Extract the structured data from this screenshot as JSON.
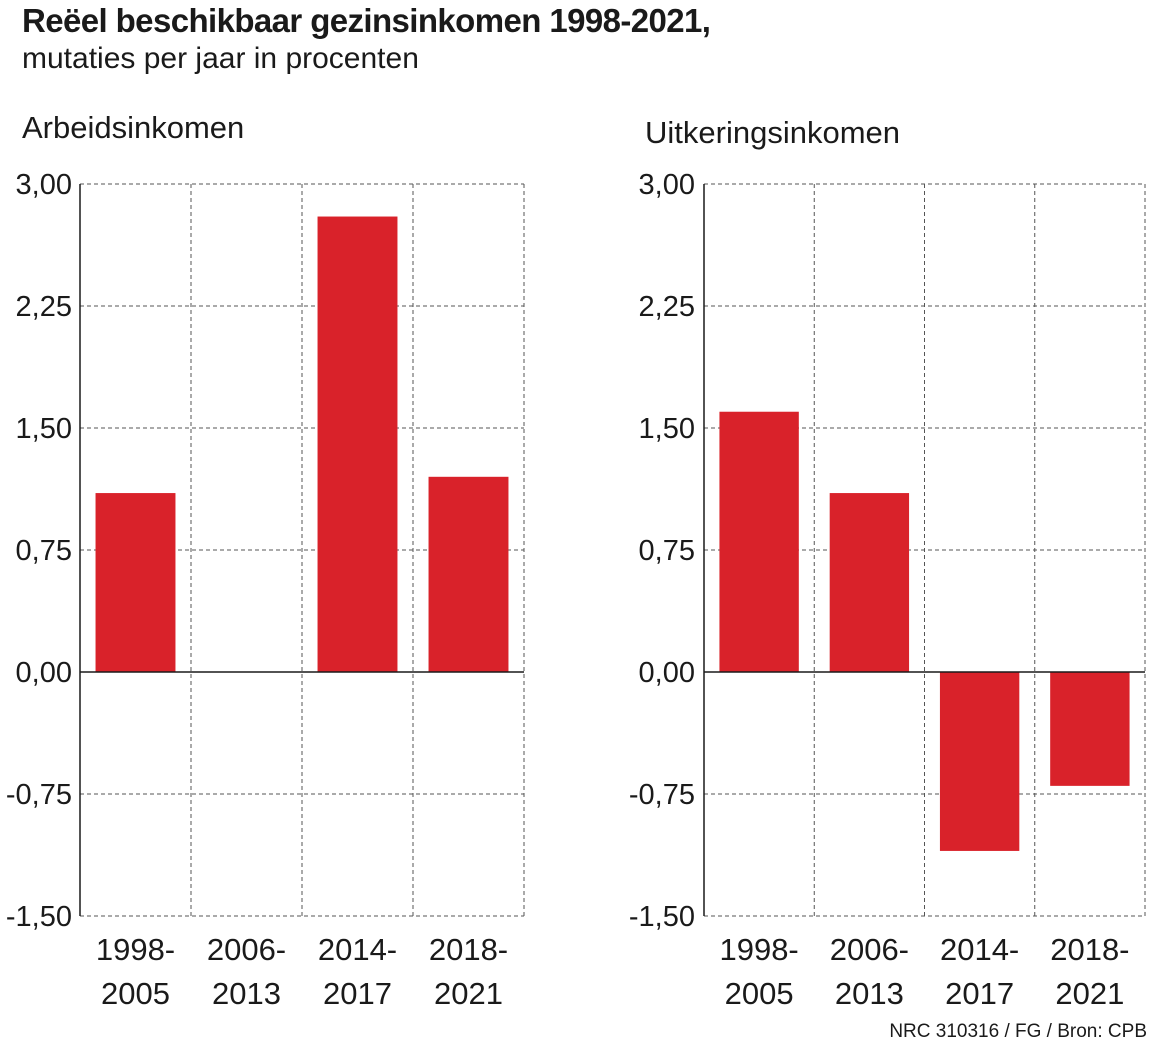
{
  "title": "Reëel beschikbaar gezinsinkomen 1998-2021,",
  "subtitle": "mutaties per jaar in procenten",
  "source": "NRC 310316 / FG / Bron: CPB",
  "colors": {
    "bar": "#d9222a",
    "grid": "#555555",
    "axis": "#1a1a1a"
  },
  "chart_data": [
    {
      "type": "bar",
      "title": "Arbeidsinkomen",
      "categories": [
        [
          "1998-",
          "2005"
        ],
        [
          "2006-",
          "2013"
        ],
        [
          "2014-",
          "2017"
        ],
        [
          "2018-",
          "2021"
        ]
      ],
      "values": [
        1.1,
        0.0,
        2.8,
        1.2
      ],
      "ylim": [
        -1.5,
        3.0
      ],
      "yticks": [
        3.0,
        2.25,
        1.5,
        0.75,
        0.0,
        -0.75,
        -1.5
      ],
      "ytick_labels": [
        "3,00",
        "2,25",
        "1,50",
        "0,75",
        "0,00",
        "-0,75",
        "-1,50"
      ],
      "grid": true
    },
    {
      "type": "bar",
      "title": "Uitkeringsinkomen",
      "categories": [
        [
          "1998-",
          "2005"
        ],
        [
          "2006-",
          "2013"
        ],
        [
          "2014-",
          "2017"
        ],
        [
          "2018-",
          "2021"
        ]
      ],
      "values": [
        1.6,
        1.1,
        -1.1,
        -0.7
      ],
      "ylim": [
        -1.5,
        3.0
      ],
      "yticks": [
        3.0,
        2.25,
        1.5,
        0.75,
        0.0,
        -0.75,
        -1.5
      ],
      "ytick_labels": [
        "3,00",
        "2,25",
        "1,50",
        "0,75",
        "0,00",
        "-0,75",
        "-1,50"
      ],
      "grid": true
    }
  ]
}
